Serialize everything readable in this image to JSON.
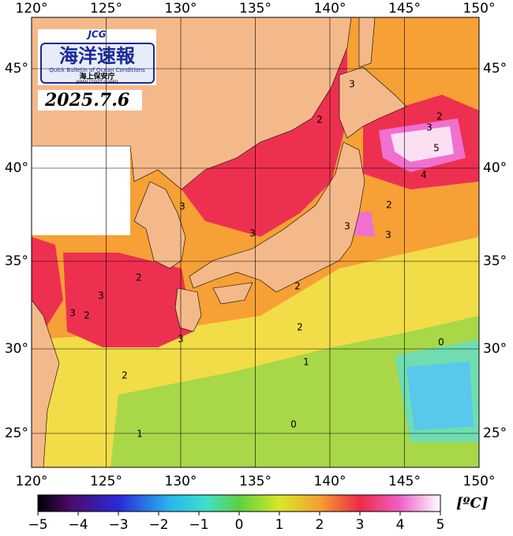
{
  "logo": {
    "jcg": "JCG",
    "title": "海洋速報",
    "subtitle": "Quick Bulletin of Ocean Conditions",
    "agency": "海上保安庁",
    "agency_en": "JAPAN COAST GUARD"
  },
  "date": "2025.7.6",
  "map": {
    "lon_labels": [
      "120°",
      "125°",
      "130°",
      "135°",
      "140°",
      "145°",
      "150°"
    ],
    "lat_labels": [
      "45°",
      "40°",
      "35°",
      "30°",
      "25°"
    ],
    "contour_labels": [
      "3",
      "2",
      "3",
      "2",
      "5",
      "4",
      "3",
      "2",
      "3",
      "3",
      "3",
      "3",
      "3",
      "2",
      "2",
      "2",
      "2",
      "3",
      "1",
      "2",
      "0",
      "0",
      "1"
    ]
  },
  "colorbar": {
    "ticks": [
      "−5",
      "−4",
      "−3",
      "−2",
      "−1",
      "0",
      "1",
      "2",
      "3",
      "4",
      "5"
    ],
    "unit": "[ºC]"
  }
}
